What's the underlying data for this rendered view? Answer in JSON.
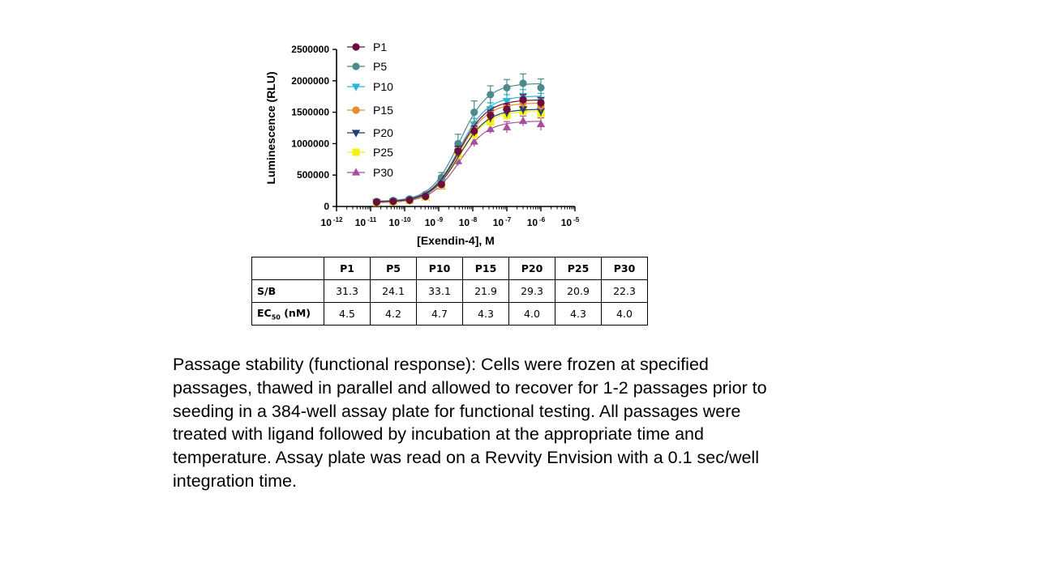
{
  "chart_data": {
    "type": "line",
    "xscale": "log10",
    "xlabel": "[Exendin-4], M",
    "ylabel": "Luminescence (RLU)",
    "xlim": [
      -12,
      -5
    ],
    "ylim": [
      0,
      2500000
    ],
    "yticks": [
      0,
      500000,
      1000000,
      1500000,
      2000000,
      2500000
    ],
    "ytick_labels": [
      "0",
      "500000",
      "1000000",
      "1500000",
      "2000000",
      "2500000"
    ],
    "xticks": [
      -12,
      -11,
      -10,
      -9,
      -8,
      -7,
      -6,
      -5
    ],
    "xtick_base": "10",
    "xtick_exponents": [
      "-12",
      "-11",
      "-10",
      "-9",
      "-8",
      "-7",
      "-6",
      "-5"
    ],
    "x": [
      1.5e-11,
      4.6e-11,
      1.4e-10,
      4.1e-10,
      1.2e-09,
      3.7e-09,
      1.1e-08,
      3.3e-08,
      1e-07,
      3e-07,
      1e-06
    ],
    "legend_position": "top-left",
    "series": [
      {
        "name": "P1",
        "marker": "circle",
        "color": "#6b0d3f",
        "values": [
          70000,
          80000,
          100000,
          160000,
          350000,
          880000,
          1200000,
          1450000,
          1550000,
          1700000,
          1650000
        ],
        "errors": [
          10000,
          10000,
          15000,
          20000,
          40000,
          80000,
          80000,
          80000,
          80000,
          80000,
          80000
        ]
      },
      {
        "name": "P5",
        "marker": "circle",
        "color": "#4b8b8b",
        "values": [
          80000,
          95000,
          120000,
          190000,
          460000,
          1000000,
          1500000,
          1780000,
          1890000,
          1960000,
          1890000
        ],
        "errors": [
          15000,
          15000,
          20000,
          30000,
          80000,
          150000,
          180000,
          140000,
          130000,
          150000,
          140000
        ]
      },
      {
        "name": "P10",
        "marker": "triangle-down",
        "color": "#29b6d6",
        "values": [
          75000,
          85000,
          110000,
          170000,
          400000,
          920000,
          1300000,
          1550000,
          1680000,
          1760000,
          1700000
        ],
        "errors": [
          10000,
          10000,
          15000,
          25000,
          50000,
          90000,
          100000,
          100000,
          100000,
          100000,
          100000
        ]
      },
      {
        "name": "P15",
        "marker": "circle",
        "color": "#e88a2e",
        "values": [
          72000,
          82000,
          105000,
          165000,
          380000,
          900000,
          1250000,
          1550000,
          1600000,
          1650000,
          1600000
        ],
        "errors": [
          10000,
          10000,
          15000,
          20000,
          50000,
          80000,
          100000,
          100000,
          90000,
          90000,
          90000
        ]
      },
      {
        "name": "P20",
        "marker": "triangle-down",
        "color": "#1f3f73",
        "values": [
          70000,
          80000,
          100000,
          160000,
          370000,
          870000,
          1200000,
          1420000,
          1500000,
          1550000,
          1520000
        ],
        "errors": [
          10000,
          10000,
          15000,
          20000,
          40000,
          80000,
          80000,
          80000,
          80000,
          80000,
          80000
        ]
      },
      {
        "name": "P25",
        "marker": "square",
        "color": "#f5f20f",
        "values": [
          65000,
          75000,
          95000,
          150000,
          340000,
          820000,
          1150000,
          1350000,
          1450000,
          1520000,
          1480000
        ],
        "errors": [
          10000,
          10000,
          15000,
          20000,
          40000,
          80000,
          80000,
          80000,
          80000,
          80000,
          80000
        ]
      },
      {
        "name": "P30",
        "marker": "triangle-up",
        "color": "#a8509d",
        "values": [
          60000,
          70000,
          90000,
          140000,
          320000,
          720000,
          1030000,
          1230000,
          1260000,
          1360000,
          1310000
        ],
        "errors": [
          10000,
          10000,
          12000,
          20000,
          40000,
          70000,
          80000,
          70000,
          90000,
          80000,
          100000
        ]
      }
    ]
  },
  "table": {
    "corner": "",
    "columns": [
      "P1",
      "P5",
      "P10",
      "P15",
      "P20",
      "P25",
      "P30"
    ],
    "rows": [
      {
        "label": "S/B",
        "values": [
          "31.3",
          "24.1",
          "33.1",
          "21.9",
          "29.3",
          "20.9",
          "22.3"
        ]
      },
      {
        "label_main": "EC",
        "label_sub": "50",
        "label_suffix": " (nM)",
        "values": [
          "4.5",
          "4.2",
          "4.7",
          "4.3",
          "4.0",
          "4.3",
          "4.0"
        ]
      }
    ]
  },
  "caption": "Passage stability (functional response): Cells were frozen at specified passages, thawed in parallel and allowed to recover for 1-2 passages prior to seeding in a 384-well assay plate for functional testing. All passages were treated with ligand followed by incubation at the appropriate time and temperature. Assay plate was read on a Revvity Envision with a 0.1 sec/well integration time."
}
